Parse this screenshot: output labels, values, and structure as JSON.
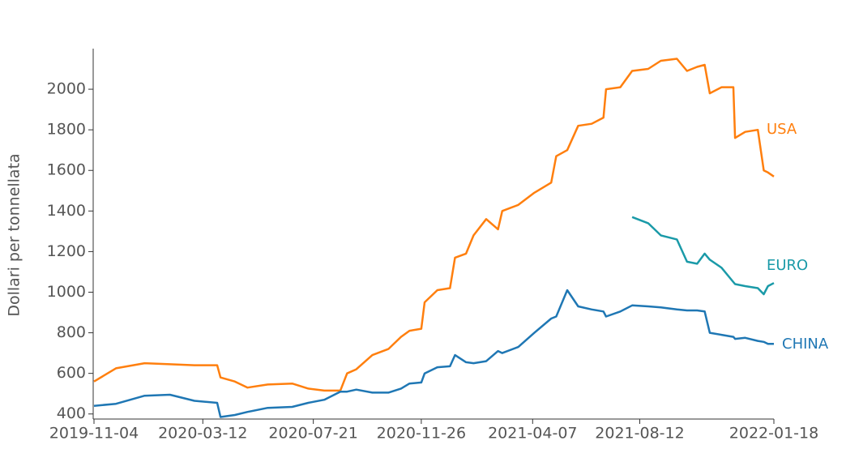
{
  "chart_data": {
    "type": "line",
    "y_label": "Dollari per tonnellata",
    "x": [
      "2019-11-04",
      "2019-11-30",
      "2020-01-03",
      "2020-02-02",
      "2020-03-02",
      "2020-03-29",
      "2020-04-02",
      "2020-04-19",
      "2020-05-04",
      "2020-05-28",
      "2020-06-26",
      "2020-07-15",
      "2020-08-03",
      "2020-08-22",
      "2020-08-30",
      "2020-09-10",
      "2020-09-29",
      "2020-10-18",
      "2020-11-02",
      "2020-11-12",
      "2020-11-26",
      "2020-11-30",
      "2020-12-15",
      "2020-12-30",
      "2021-01-05",
      "2021-01-18",
      "2021-01-27",
      "2021-02-11",
      "2021-02-25",
      "2021-03-02",
      "2021-03-21",
      "2021-04-09",
      "2021-04-29",
      "2021-05-05",
      "2021-05-18",
      "2021-05-31",
      "2021-06-16",
      "2021-06-30",
      "2021-07-03",
      "2021-07-20",
      "2021-08-03",
      "2021-08-22",
      "2021-09-06",
      "2021-09-25",
      "2021-10-07",
      "2021-10-19",
      "2021-10-28",
      "2021-11-03",
      "2021-11-17",
      "2021-12-01",
      "2021-12-03",
      "2021-12-15",
      "2021-12-30",
      "2022-01-06",
      "2022-01-11",
      "2022-01-18"
    ],
    "series": [
      {
        "name": "USA",
        "color": "#ff7f0e",
        "values": [
          560,
          625,
          650,
          645,
          640,
          640,
          580,
          560,
          530,
          545,
          550,
          525,
          515,
          515,
          600,
          620,
          690,
          720,
          780,
          810,
          820,
          950,
          1010,
          1020,
          1170,
          1190,
          1280,
          1360,
          1310,
          1400,
          1430,
          1490,
          1540,
          1670,
          1700,
          1820,
          1830,
          1860,
          2000,
          2010,
          2090,
          2100,
          2140,
          2150,
          2090,
          2110,
          2120,
          1980,
          2010,
          2010,
          1760,
          1790,
          1800,
          1600,
          1590,
          1570
        ]
      },
      {
        "name": "EURO",
        "color": "#1a9aa8",
        "values": [
          null,
          null,
          null,
          null,
          null,
          null,
          null,
          null,
          null,
          null,
          null,
          null,
          null,
          null,
          null,
          null,
          null,
          null,
          null,
          null,
          null,
          null,
          null,
          null,
          null,
          null,
          null,
          null,
          null,
          null,
          null,
          null,
          null,
          null,
          null,
          null,
          null,
          null,
          null,
          null,
          1370,
          1340,
          1280,
          1260,
          1150,
          1140,
          1190,
          1160,
          1120,
          1050,
          1040,
          1030,
          1020,
          990,
          1030,
          1045
        ]
      },
      {
        "name": "CHINA",
        "color": "#1f77b4",
        "values": [
          440,
          450,
          490,
          495,
          465,
          455,
          385,
          395,
          410,
          430,
          435,
          455,
          470,
          510,
          510,
          520,
          505,
          505,
          525,
          550,
          555,
          600,
          630,
          635,
          690,
          655,
          650,
          660,
          710,
          700,
          730,
          800,
          870,
          880,
          1010,
          930,
          915,
          905,
          880,
          905,
          935,
          930,
          925,
          915,
          910,
          910,
          905,
          800,
          790,
          780,
          770,
          775,
          760,
          755,
          745,
          745
        ]
      }
    ],
    "xlim": [
      "2019-11-04",
      "2022-01-18"
    ],
    "xticks": [
      "2019-11-04",
      "2020-03-12",
      "2020-07-21",
      "2020-11-26",
      "2021-04-07",
      "2021-08-12",
      "2022-01-18"
    ],
    "ylim": [
      375,
      2200
    ],
    "yticks": [
      400,
      600,
      800,
      1000,
      1200,
      1400,
      1600,
      1800,
      2000
    ]
  }
}
